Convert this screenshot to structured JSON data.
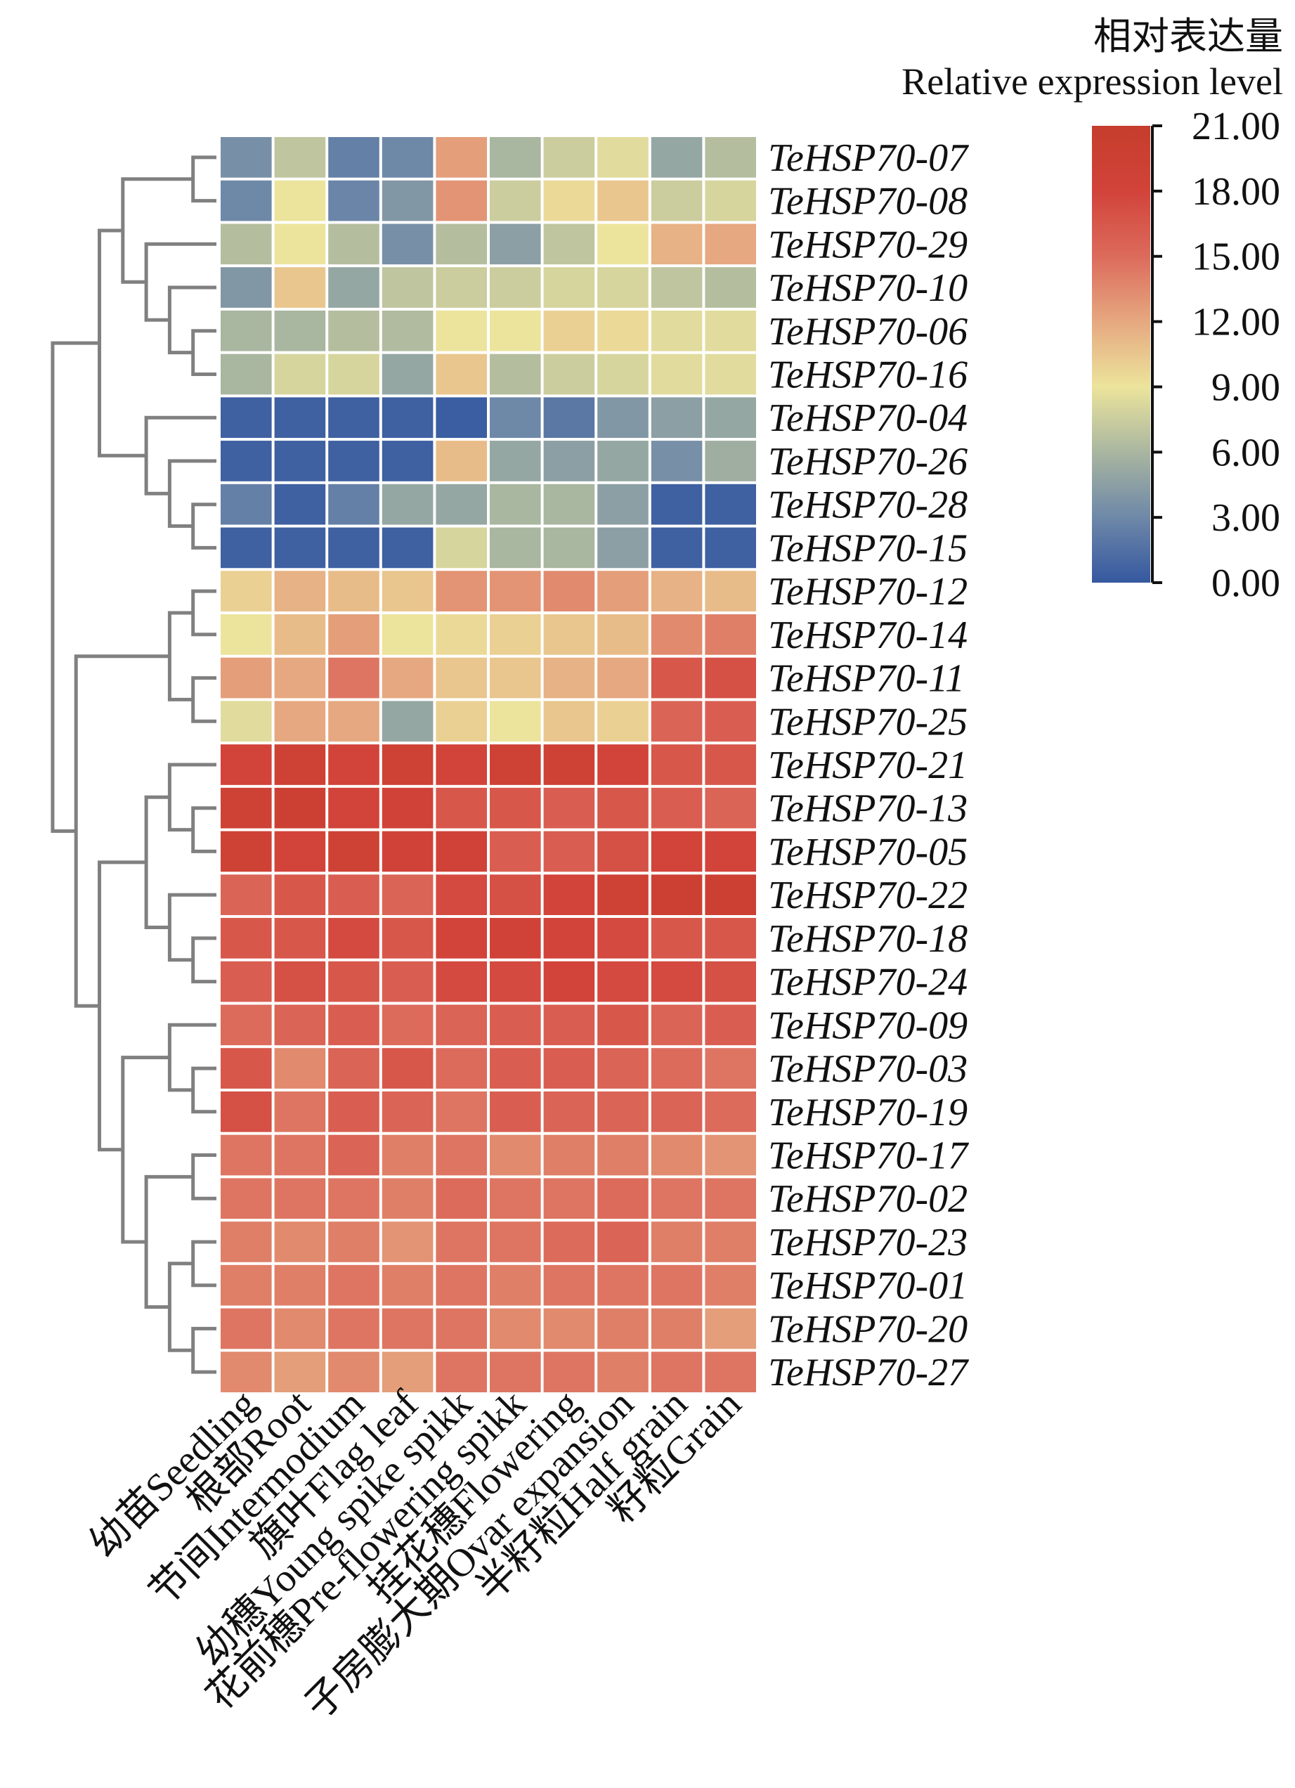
{
  "chart_data": {
    "type": "heatmap",
    "title": "",
    "legend": {
      "title_cn": "相对表达量",
      "title_en": "Relative expression level",
      "placement": "top-right",
      "range": [
        0,
        21
      ],
      "ticks": [
        "21.00",
        "18.00",
        "15.00",
        "12.00",
        "9.00",
        "6.00",
        "3.00",
        "0.00"
      ],
      "tick_values": [
        21,
        18,
        15,
        12,
        9,
        6,
        3,
        0
      ],
      "colorscale": [
        {
          "v": 0,
          "c": "#3558a0"
        },
        {
          "v": 3,
          "c": "#6e88a8"
        },
        {
          "v": 6,
          "c": "#a9b6a0"
        },
        {
          "v": 9,
          "c": "#ece49c"
        },
        {
          "v": 12,
          "c": "#e6a880"
        },
        {
          "v": 15,
          "c": "#dc6b5c"
        },
        {
          "v": 18,
          "c": "#d2433a"
        },
        {
          "v": 21,
          "c": "#c53d2c"
        }
      ]
    },
    "columns": [
      "幼苗Seedling",
      "根部Root",
      "节间Intermodium",
      "旗叶Flag leaf",
      "幼穗Young spike spikk",
      "花前穗Pre-flowering spikk",
      "挂花穗Flowering",
      "子房膨大期Ovar expansion",
      "半籽粒Half grain",
      "籽粒Grain"
    ],
    "rows": [
      "TeHSP70-07",
      "TeHSP70-08",
      "TeHSP70-29",
      "TeHSP70-10",
      "TeHSP70-06",
      "TeHSP70-16",
      "TeHSP70-04",
      "TeHSP70-26",
      "TeHSP70-28",
      "TeHSP70-15",
      "TeHSP70-12",
      "TeHSP70-14",
      "TeHSP70-11",
      "TeHSP70-25",
      "TeHSP70-21",
      "TeHSP70-13",
      "TeHSP70-05",
      "TeHSP70-22",
      "TeHSP70-18",
      "TeHSP70-24",
      "TeHSP70-09",
      "TeHSP70-03",
      "TeHSP70-19",
      "TeHSP70-17",
      "TeHSP70-02",
      "TeHSP70-23",
      "TeHSP70-01",
      "TeHSP70-20",
      "TeHSP70-27"
    ],
    "values": [
      [
        3.5,
        7,
        2.5,
        3,
        12.5,
        6,
        7.5,
        8.5,
        5,
        6.5
      ],
      [
        3,
        9,
        2.8,
        4,
        13,
        7.5,
        9.5,
        10.5,
        7.5,
        8
      ],
      [
        6.5,
        9,
        6.5,
        3.5,
        6.5,
        4.5,
        7,
        9,
        11.5,
        12
      ],
      [
        4,
        10.5,
        5,
        7,
        7.5,
        7.5,
        8,
        8,
        7,
        6.5
      ],
      [
        6,
        6,
        6.5,
        6.3,
        9,
        9,
        10,
        9.5,
        8.5,
        8.5
      ],
      [
        6,
        8,
        8,
        5,
        10.5,
        6.5,
        7.5,
        8,
        8.5,
        8.5
      ],
      [
        0.5,
        0.5,
        0.5,
        0.5,
        0.3,
        3,
        2,
        4,
        4.5,
        5
      ],
      [
        0.5,
        0.5,
        0.5,
        0.5,
        11,
        5,
        4.5,
        5,
        3.5,
        5.5
      ],
      [
        2.5,
        0.5,
        2.5,
        5,
        5,
        6,
        6,
        4.5,
        0.5,
        0.5
      ],
      [
        0.5,
        0.5,
        0.5,
        0.5,
        8,
        6,
        6,
        4.5,
        0.5,
        0.5
      ],
      [
        10,
        11.5,
        11,
        10.5,
        13,
        13,
        13.5,
        12.5,
        11.5,
        11
      ],
      [
        9,
        11,
        12.5,
        9,
        9.5,
        10,
        10.5,
        11,
        13.5,
        14
      ],
      [
        12.5,
        12,
        14.5,
        12,
        10.5,
        10.5,
        11.5,
        12,
        16.5,
        17
      ],
      [
        8.5,
        12,
        12,
        5,
        10,
        9,
        10.5,
        10,
        15.5,
        16
      ],
      [
        18,
        19,
        18,
        19,
        18,
        19,
        19,
        18,
        16.5,
        16.5
      ],
      [
        19,
        19.5,
        18,
        18.5,
        16.5,
        16.5,
        16,
        16.5,
        16,
        15.5
      ],
      [
        19,
        18,
        19,
        18.5,
        18.5,
        16,
        16,
        17,
        18,
        18
      ],
      [
        15.5,
        16.5,
        16,
        15.5,
        17.5,
        17,
        18,
        19,
        19.5,
        19.5
      ],
      [
        16.5,
        16.5,
        17.5,
        16.5,
        18,
        18.5,
        18,
        17.5,
        16.5,
        16.5
      ],
      [
        16,
        17,
        16.5,
        16,
        17.5,
        17.5,
        18,
        17.5,
        17.5,
        17
      ],
      [
        15,
        15.5,
        16,
        15,
        15.5,
        16,
        16,
        16.5,
        15.5,
        16
      ],
      [
        16.5,
        13.5,
        15.5,
        16.5,
        15,
        16,
        16,
        15.5,
        15,
        14.5
      ],
      [
        17,
        14.5,
        16,
        15.5,
        14.5,
        16,
        15.5,
        15.5,
        15.5,
        15
      ],
      [
        14.5,
        14.5,
        15.5,
        14,
        14.5,
        13.5,
        14,
        14,
        13.5,
        13
      ],
      [
        14.5,
        14.5,
        14.5,
        14,
        15,
        14.5,
        14.5,
        15,
        14.5,
        14.5
      ],
      [
        14,
        13.5,
        14,
        13,
        14.5,
        14.5,
        15,
        15.5,
        14,
        14
      ],
      [
        14,
        14,
        14.5,
        14,
        14.5,
        14,
        14.5,
        14.5,
        14.5,
        14
      ],
      [
        14.5,
        13.5,
        14.5,
        14.5,
        14.5,
        13.5,
        13.5,
        14,
        14,
        12.5
      ],
      [
        13.5,
        12.5,
        13.5,
        12.5,
        14.5,
        14.5,
        14.5,
        14,
        14.5,
        14.5
      ]
    ],
    "row_dendrogram": [
      [
        [
          [
            0,
            1
          ],
          [
            2,
            [
              3,
              [
                4,
                5
              ]
            ]
          ]
        ],
        [
          6,
          [
            7,
            [
              8,
              9
            ]
          ]
        ]
      ],
      [
        [
          [
            10,
            11
          ],
          [
            12,
            13
          ]
        ],
        [
          [
            [
              14,
              [
                15,
                16
              ]
            ],
            [
              17,
              [
                18,
                19
              ]
            ]
          ],
          [
            [
              20,
              [
                21,
                22
              ]
            ],
            [
              [
                23,
                24
              ],
              [
                [
                  25,
                  26
                ],
                [
                  27,
                  28
                ]
              ]
            ]
          ]
        ]
      ]
    ],
    "xlabel": "",
    "ylabel": "",
    "grid": false
  }
}
